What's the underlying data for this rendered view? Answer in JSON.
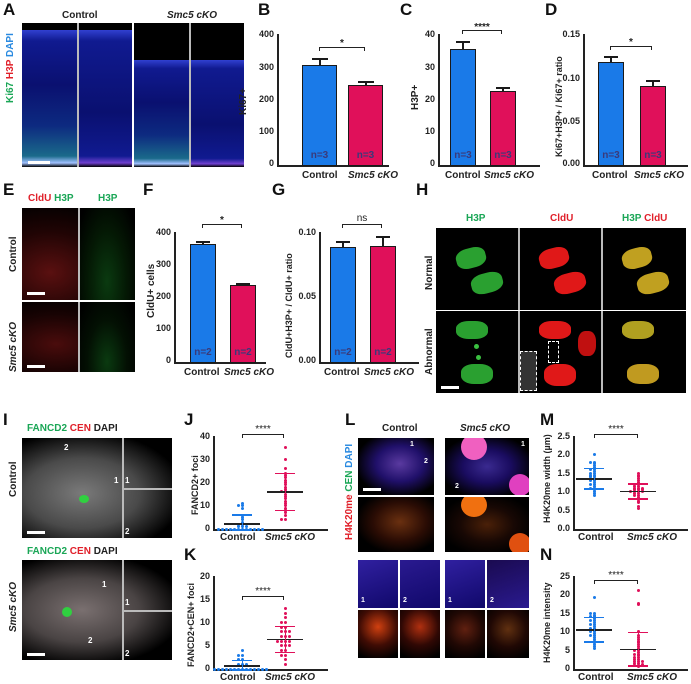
{
  "colors": {
    "control": "#1a7ae8",
    "cko": "#e0105a",
    "green_label": "#1aa656",
    "red_label": "#e0202a",
    "blue_label": "#2a8ae0"
  },
  "panels": {
    "A": {
      "letter": "A",
      "col_labels": [
        "Control",
        "Smc5 cKO"
      ],
      "stain_label": {
        "ki67": "Ki67",
        "h3p": "H3P",
        "dapi": "DAPI"
      }
    },
    "B": {
      "letter": "B"
    },
    "C": {
      "letter": "C"
    },
    "D": {
      "letter": "D"
    },
    "E": {
      "letter": "E",
      "col_labels": {
        "cldu": "CldU",
        "h3p": "H3P",
        "h3p2": "H3P"
      },
      "row_labels": [
        "Control",
        "Smc5 cKO"
      ]
    },
    "F": {
      "letter": "F"
    },
    "G": {
      "letter": "G"
    },
    "H": {
      "letter": "H",
      "col_labels": {
        "h3p": "H3P",
        "cldu": "CldU",
        "merge_h3p": "H3P",
        "merge_cldu": "CldU"
      },
      "row_labels": [
        "Normal",
        "Abnormal"
      ]
    },
    "I": {
      "letter": "I",
      "stain": {
        "fancd2": "FANCD2",
        "cen": "CEN",
        "dapi": "DAPI"
      },
      "row_labels": [
        "Control",
        "Smc5 cKO"
      ],
      "inset_labels": [
        "1",
        "2"
      ],
      "arrow_labels": [
        "1",
        "2"
      ]
    },
    "J": {
      "letter": "J"
    },
    "K": {
      "letter": "K"
    },
    "L": {
      "letter": "L",
      "col_labels": [
        "Control",
        "Smc5 cKO"
      ],
      "stain": {
        "h4k20me": "H4K20me",
        "cen": "CEN",
        "dapi": "DAPI"
      },
      "inset_labels": [
        "1",
        "2",
        "1",
        "2"
      ],
      "arrow_labels": [
        "1",
        "2"
      ]
    },
    "M": {
      "letter": "M"
    },
    "N": {
      "letter": "N"
    }
  },
  "chart_data": [
    {
      "panel": "B",
      "type": "bar",
      "categories": [
        "Control",
        "Smc5 cKO"
      ],
      "values": [
        310,
        248
      ],
      "errors": [
        20,
        10
      ],
      "ylabel": "Ki67+",
      "ylim": [
        0,
        400
      ],
      "yticks": [
        "0",
        "100",
        "200",
        "300",
        "400"
      ],
      "n_labels": [
        "n=3",
        "n=3"
      ],
      "significance": "*"
    },
    {
      "panel": "C",
      "type": "bar",
      "categories": [
        "Control",
        "Smc5 cKO"
      ],
      "values": [
        35.7,
        22.7
      ],
      "errors": [
        2.2,
        1.0
      ],
      "ylabel": "H3P+",
      "ylim": [
        0,
        40
      ],
      "yticks": [
        "0",
        "10",
        "20",
        "30",
        "40"
      ],
      "n_labels": [
        "n=3",
        "n=3"
      ],
      "significance": "****"
    },
    {
      "panel": "D",
      "type": "bar",
      "categories": [
        "Control",
        "Smc5 cKO"
      ],
      "values": [
        0.118,
        0.091
      ],
      "errors": [
        0.007,
        0.006
      ],
      "ylabel": "Ki67+H3P+ / Ki67+ ratio",
      "ylim": [
        0,
        0.15
      ],
      "yticks": [
        "0.00",
        "0.05",
        "0.10",
        "0.15"
      ],
      "n_labels": [
        "n=3",
        "n=3"
      ],
      "significance": "*"
    },
    {
      "panel": "F",
      "type": "bar",
      "categories": [
        "Control",
        "Smc5 cKO"
      ],
      "values": [
        365,
        240
      ],
      "errors": [
        7,
        4
      ],
      "ylabel": "CldU+ cells",
      "ylim": [
        0,
        400
      ],
      "yticks": [
        "0",
        "100",
        "200",
        "300",
        "400"
      ],
      "n_labels": [
        "n=2",
        "n=2"
      ],
      "significance": "*"
    },
    {
      "panel": "G",
      "type": "bar",
      "categories": [
        "Control",
        "Smc5 cKO"
      ],
      "values": [
        0.089,
        0.09
      ],
      "errors": [
        0.004,
        0.008
      ],
      "ylabel": "CldU+H3P+ / CldU+ ratio",
      "ylim": [
        0,
        0.1
      ],
      "yticks": [
        "0.00",
        "0.05",
        "0.10"
      ],
      "n_labels": [
        "n=2",
        "n=2"
      ],
      "significance": "ns"
    },
    {
      "panel": "J",
      "type": "scatter",
      "categories": [
        "Control",
        "Smc5 cKO"
      ],
      "means": [
        2.5,
        16.2
      ],
      "sd": [
        3.8,
        8.0
      ],
      "ylabel": "FANCD2+ foci",
      "ylim": [
        0,
        40
      ],
      "yticks": [
        "0",
        "10",
        "20",
        "30",
        "40"
      ],
      "significance": "****",
      "series": [
        {
          "name": "Control",
          "values": [
            0,
            0,
            0,
            0,
            0,
            0,
            0,
            0,
            0,
            0,
            0,
            0,
            1,
            1,
            1,
            2,
            2,
            3,
            4,
            5,
            6,
            9,
            10,
            10,
            11
          ]
        },
        {
          "name": "Smc5 cKO",
          "values": [
            4,
            4,
            6,
            7,
            8,
            9,
            10,
            11,
            12,
            13,
            14,
            15,
            16,
            16,
            17,
            18,
            19,
            20,
            21,
            22,
            23,
            24,
            26,
            30,
            35
          ]
        }
      ]
    },
    {
      "panel": "K",
      "type": "scatter",
      "categories": [
        "Control",
        "Smc5 cKO"
      ],
      "means": [
        0.8,
        6.5
      ],
      "sd": [
        1.2,
        2.8
      ],
      "ylabel": "FANCD2+CEN+ foci",
      "ylim": [
        0,
        20
      ],
      "yticks": [
        "0",
        "5",
        "10",
        "15",
        "20"
      ],
      "significance": "****",
      "series": [
        {
          "name": "Control",
          "values": [
            0,
            0,
            0,
            0,
            0,
            0,
            0,
            0,
            0,
            0,
            0,
            0,
            0,
            0,
            1,
            1,
            1,
            2,
            2,
            3,
            3,
            4
          ]
        },
        {
          "name": "Smc5 cKO",
          "values": [
            1,
            2,
            3,
            3,
            4,
            4,
            5,
            5,
            5,
            6,
            6,
            6,
            6,
            7,
            7,
            7,
            8,
            8,
            8,
            9,
            9,
            10,
            10,
            11,
            12,
            13
          ]
        }
      ]
    },
    {
      "panel": "M",
      "type": "scatter",
      "categories": [
        "Control",
        "Smc5 cKO"
      ],
      "means": [
        1.37,
        1.03
      ],
      "sd": [
        0.27,
        0.2
      ],
      "ylabel": "H4K20me width (µm)",
      "ylim": [
        0,
        2.5
      ],
      "yticks": [
        "0.0",
        "0.5",
        "1.0",
        "1.5",
        "2.0",
        "2.5"
      ],
      "significance": "****",
      "series": [
        {
          "name": "Control",
          "values": [
            0.9,
            0.95,
            1.0,
            1.05,
            1.1,
            1.1,
            1.15,
            1.2,
            1.2,
            1.25,
            1.3,
            1.3,
            1.35,
            1.35,
            1.4,
            1.4,
            1.45,
            1.45,
            1.5,
            1.5,
            1.55,
            1.6,
            1.6,
            1.65,
            1.7,
            1.75,
            1.8,
            1.8,
            2.0
          ]
        },
        {
          "name": "Smc5 cKO",
          "values": [
            0.55,
            0.6,
            0.7,
            0.75,
            0.8,
            0.85,
            0.9,
            0.9,
            0.95,
            0.95,
            1.0,
            1.0,
            1.0,
            1.0,
            1.05,
            1.05,
            1.05,
            1.1,
            1.1,
            1.1,
            1.15,
            1.15,
            1.2,
            1.2,
            1.25,
            1.3,
            1.35,
            1.4,
            1.45,
            1.5
          ]
        }
      ]
    },
    {
      "panel": "N",
      "type": "scatter",
      "categories": [
        "Control",
        "Smc5 cKO"
      ],
      "means": [
        10.7,
        5.5
      ],
      "sd": [
        3.3,
        4.5
      ],
      "ylabel": "H4K20me intensity",
      "ylim": [
        0,
        25
      ],
      "yticks": [
        "0",
        "5",
        "10",
        "15",
        "20",
        "25"
      ],
      "significance": "****",
      "series": [
        {
          "name": "Control",
          "values": [
            5.5,
            6,
            6.5,
            7,
            7.5,
            8,
            8.5,
            9,
            9,
            9.5,
            10,
            10,
            10.5,
            10.5,
            11,
            11,
            11.5,
            12,
            12,
            12.5,
            13,
            13,
            13.5,
            14,
            14,
            14.5,
            15,
            15,
            19.3
          ]
        },
        {
          "name": "Smc5 cKO",
          "values": [
            0.8,
            1,
            1,
            1.2,
            1.5,
            1.5,
            2,
            2,
            2,
            2.5,
            2.5,
            3,
            3,
            3.5,
            4,
            4,
            4.5,
            5,
            5,
            5.5,
            6,
            6.5,
            7,
            7.5,
            8,
            8.5,
            9,
            10,
            17.3,
            17.6,
            21.2
          ]
        }
      ]
    }
  ]
}
